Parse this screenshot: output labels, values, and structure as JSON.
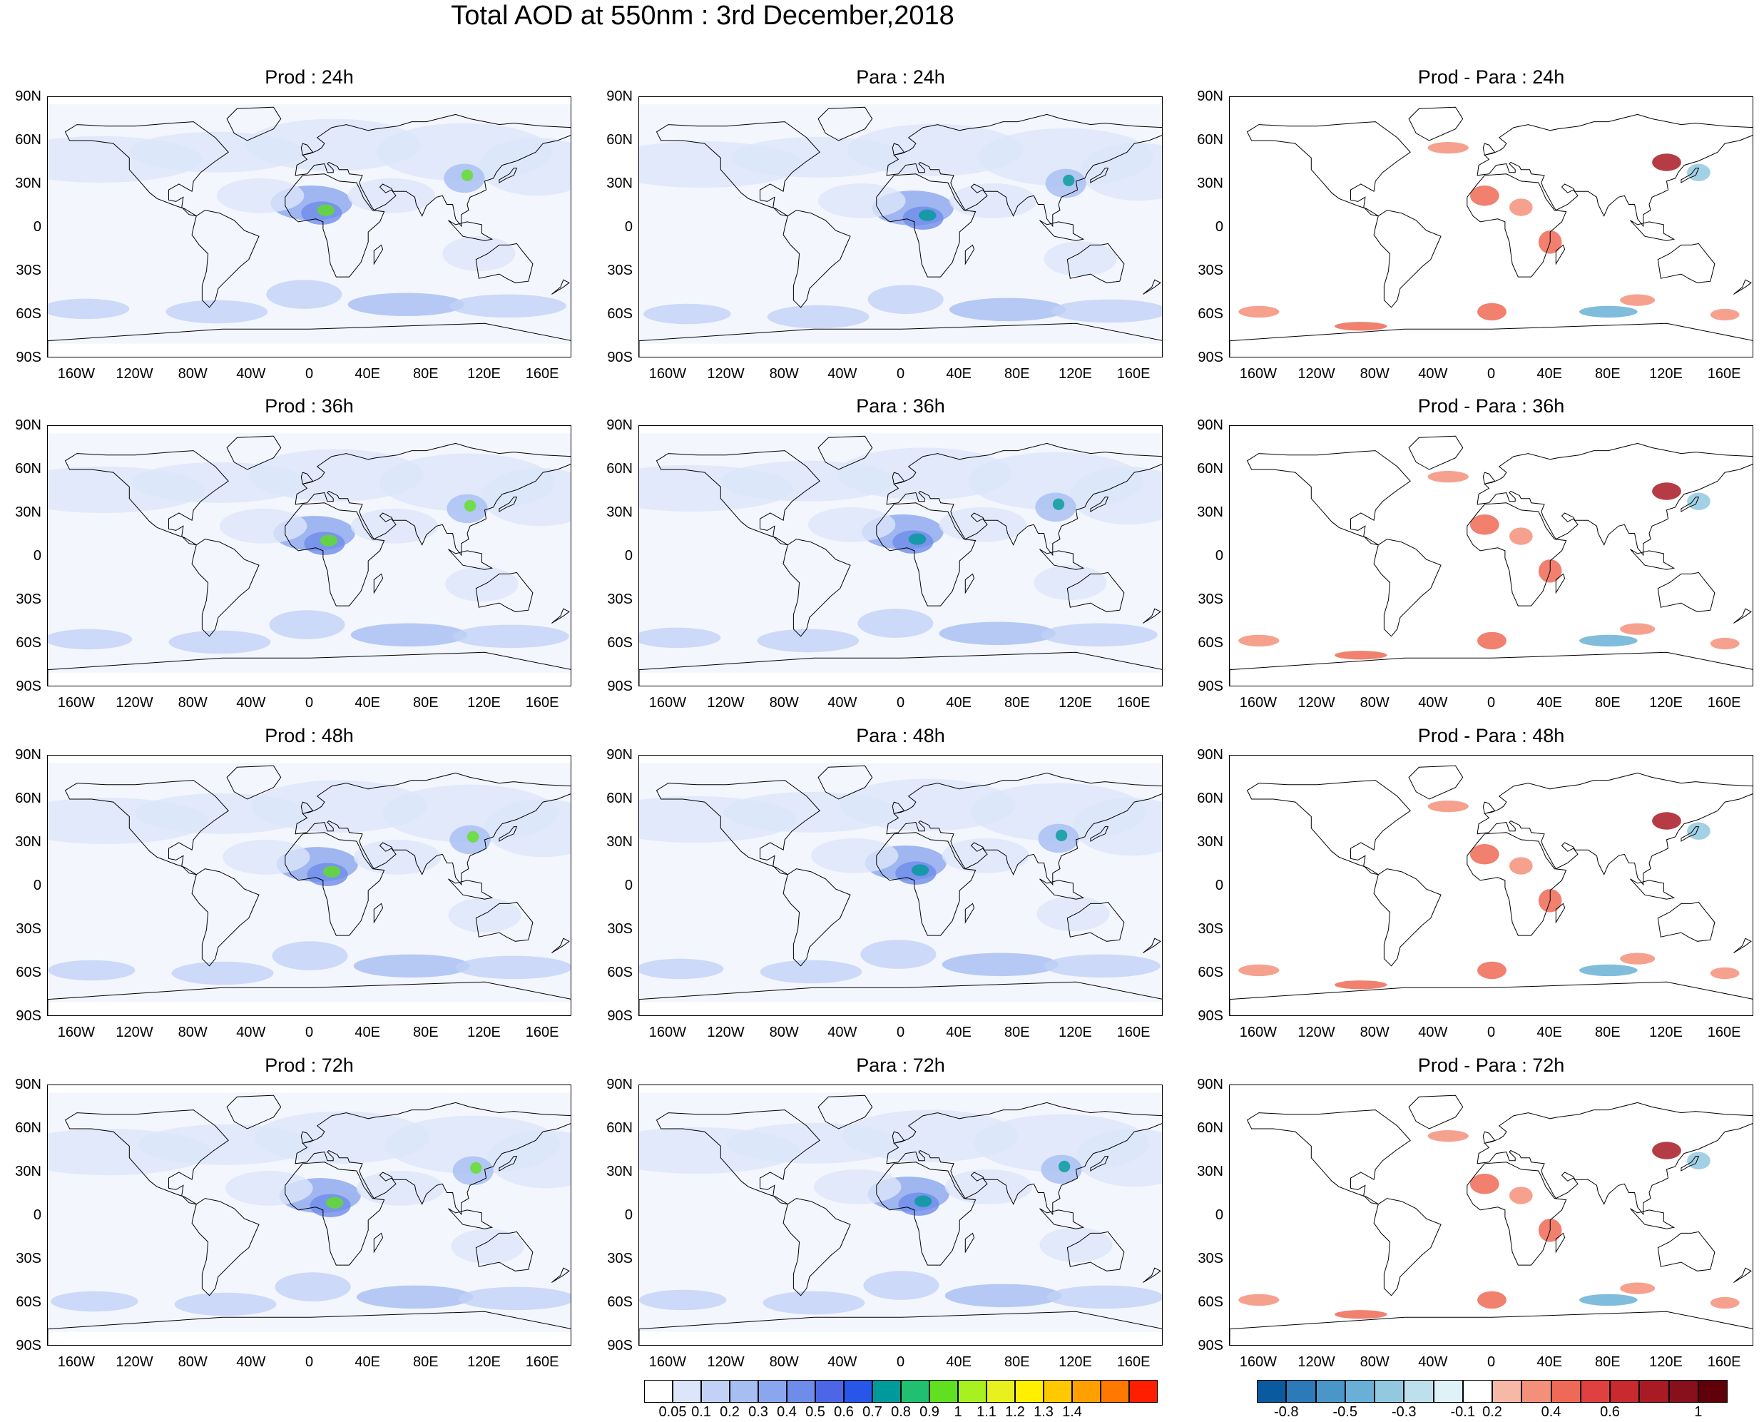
{
  "title": "Total AOD at 550nm : 3rd December,2018",
  "lat_labels": [
    "90N",
    "60N",
    "30N",
    "0",
    "30S",
    "60S",
    "90S"
  ],
  "lon_labels": [
    "160W",
    "120W",
    "80W",
    "40W",
    "0",
    "40E",
    "80E",
    "120E",
    "160E"
  ],
  "rows": [
    {
      "prod": "Prod : 24h",
      "para": "Para : 24h",
      "diff": "Prod - Para : 24h"
    },
    {
      "prod": "Prod : 36h",
      "para": "Para : 36h",
      "diff": "Prod - Para : 36h"
    },
    {
      "prod": "Prod : 48h",
      "para": "Para : 48h",
      "diff": "Prod - Para : 48h"
    },
    {
      "prod": "Prod : 72h",
      "para": "Para : 72h",
      "diff": "Prod - Para : 72h"
    }
  ],
  "aod_colorbar": {
    "labels": [
      "0.05",
      "0.1",
      "0.2",
      "0.3",
      "0.4",
      "0.5",
      "0.6",
      "0.7",
      "0.8",
      "0.9",
      "1",
      "1.1",
      "1.2",
      "1.3",
      "1.4"
    ],
    "colors": [
      "#ffffff",
      "#dce6fa",
      "#c2d2f6",
      "#a6bef2",
      "#8aa6ee",
      "#6e8cea",
      "#4c66e6",
      "#2856e8",
      "#009a9a",
      "#20c070",
      "#60e020",
      "#a8f020",
      "#e8f020",
      "#fff000",
      "#ffc800",
      "#ffa000",
      "#ff7800",
      "#ff1e00"
    ]
  },
  "diff_colorbar": {
    "labels": [
      "-0.8",
      "-0.5",
      "-0.3",
      "-0.1",
      "0.2",
      "0.4",
      "0.6",
      "1"
    ],
    "colors": [
      "#0a5aa0",
      "#2c7ab8",
      "#4a96c8",
      "#6ab0d6",
      "#92c8e0",
      "#bde0ec",
      "#def2f8",
      "#ffffff",
      "#f8b8a8",
      "#f4907a",
      "#ee6a56",
      "#e04040",
      "#c82a30",
      "#a81a24",
      "#88101c",
      "#600008"
    ]
  }
}
